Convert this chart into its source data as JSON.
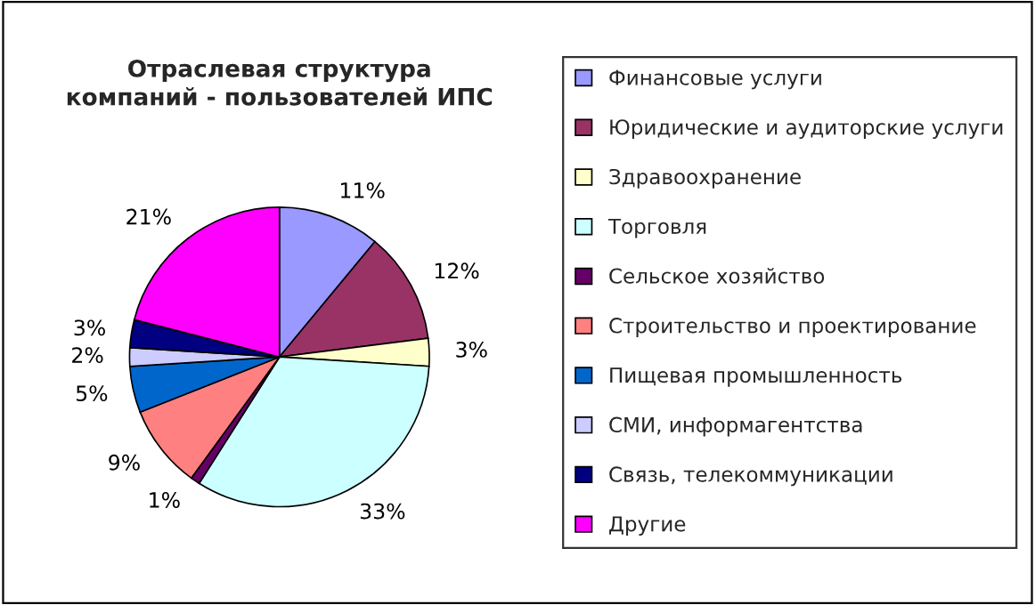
{
  "chart_data": {
    "type": "pie",
    "title": "Отраслевая структура\nкомпаний - пользователей ИПС",
    "categories": [
      "Финансовые услуги",
      "Юридические и аудиторские услуги",
      "Здравоохранение",
      "Торговля",
      "Сельское хозяйство",
      "Строительство и проектирование",
      "Пищевая промышленность",
      "СМИ, информагентства",
      "Связь, телекоммуникации",
      "Другие"
    ],
    "values": [
      11,
      12,
      3,
      33,
      1,
      9,
      5,
      2,
      3,
      21
    ],
    "value_labels": [
      "11%",
      "12%",
      "3%",
      "33%",
      "1%",
      "9%",
      "5%",
      "2%",
      "3%",
      "21%"
    ],
    "colors": [
      "#9999ff",
      "#993366",
      "#ffffcc",
      "#ccffff",
      "#660066",
      "#ff8080",
      "#0066cc",
      "#ccccff",
      "#000080",
      "#ff00ff"
    ],
    "legend": "right"
  }
}
